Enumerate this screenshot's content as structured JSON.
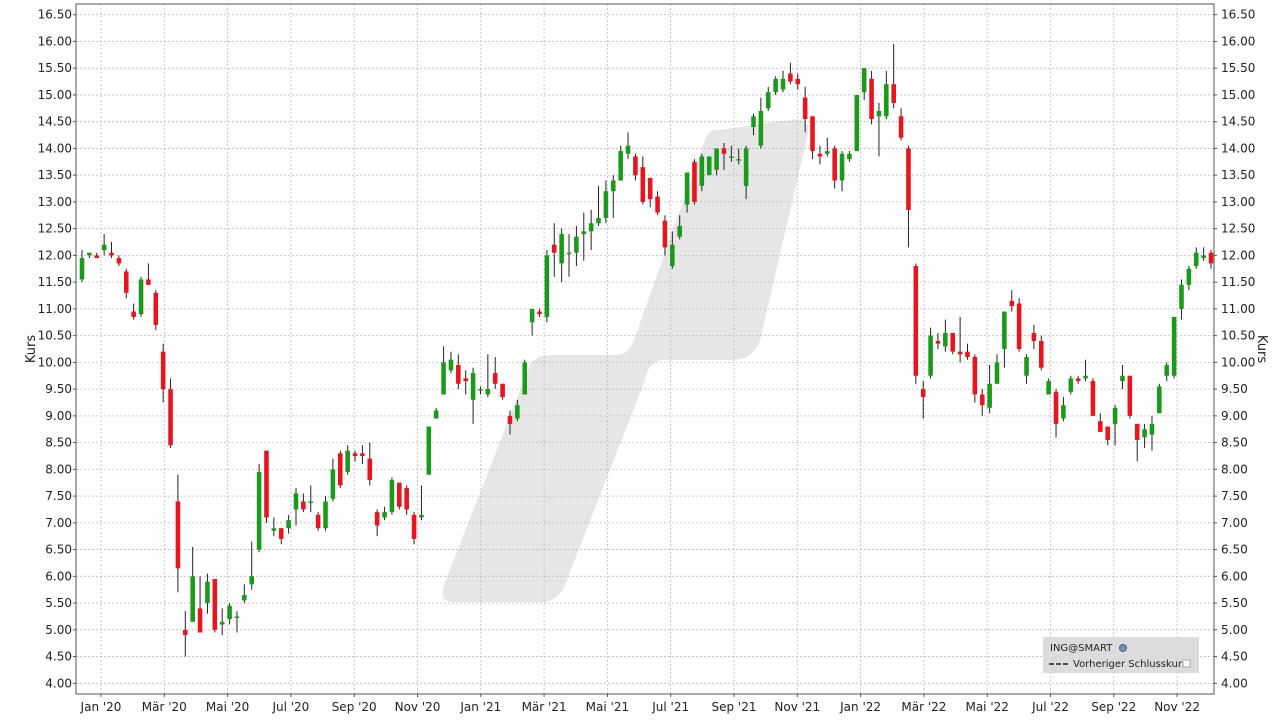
{
  "chart_data": {
    "type": "candlestick",
    "ylabel_left": "Kurs",
    "ylabel_right": "Kurs",
    "ylim": [
      3.8,
      16.7
    ],
    "y_ticks": [
      "4.00",
      "4.50",
      "5.00",
      "5.50",
      "6.00",
      "6.50",
      "7.00",
      "7.50",
      "8.00",
      "8.50",
      "9.00",
      "9.50",
      "10.00",
      "10.50",
      "11.00",
      "11.50",
      "12.00",
      "12.50",
      "13.00",
      "13.50",
      "14.00",
      "14.50",
      "15.00",
      "15.50",
      "16.00",
      "16.50"
    ],
    "x_ticks": [
      "Jan '20",
      "Mär '20",
      "Mai '20",
      "Jul '20",
      "Sep '20",
      "Nov '20",
      "Jan '21",
      "Mär '21",
      "Mai '21",
      "Jul '21",
      "Sep '21",
      "Nov '21",
      "Jan '22",
      "Mär '22",
      "Mai '22",
      "Jul '22",
      "Sep '22",
      "Nov '22"
    ],
    "grid": true,
    "colors": {
      "up": "#1a9a1a",
      "down": "#e8141e",
      "wick": "#222222",
      "grid": "#bbbbbb",
      "watermark": "#e6e6e6",
      "legend_bg": "#dcdcdc"
    },
    "legend": {
      "position": "bottom-right",
      "title": "ING@SMART",
      "entries": [
        "Vorheriger Schlusskurs"
      ]
    },
    "candles": [
      {
        "o": 11.55,
        "h": 12.1,
        "l": 11.5,
        "c": 11.95
      },
      {
        "o": 12.0,
        "h": 12.05,
        "l": 11.95,
        "c": 12.05
      },
      {
        "o": 12.0,
        "h": 12.05,
        "l": 11.95,
        "c": 11.95
      },
      {
        "o": 12.1,
        "h": 12.4,
        "l": 12.0,
        "c": 12.2
      },
      {
        "o": 12.05,
        "h": 12.25,
        "l": 11.95,
        "c": 12.0
      },
      {
        "o": 11.95,
        "h": 12.0,
        "l": 11.8,
        "c": 11.85
      },
      {
        "o": 11.7,
        "h": 11.75,
        "l": 11.2,
        "c": 11.3
      },
      {
        "o": 10.95,
        "h": 11.1,
        "l": 10.8,
        "c": 10.85
      },
      {
        "o": 10.9,
        "h": 11.6,
        "l": 10.85,
        "c": 11.55
      },
      {
        "o": 11.55,
        "h": 11.85,
        "l": 11.45,
        "c": 11.45
      },
      {
        "o": 11.3,
        "h": 11.35,
        "l": 10.6,
        "c": 10.7
      },
      {
        "o": 10.2,
        "h": 10.35,
        "l": 9.25,
        "c": 9.5
      },
      {
        "o": 9.5,
        "h": 9.7,
        "l": 8.4,
        "c": 8.45
      },
      {
        "o": 7.4,
        "h": 7.9,
        "l": 5.7,
        "c": 6.15
      },
      {
        "o": 5.0,
        "h": 5.35,
        "l": 4.5,
        "c": 4.9
      },
      {
        "o": 5.15,
        "h": 6.55,
        "l": 5.15,
        "c": 6.0
      },
      {
        "o": 5.4,
        "h": 6.0,
        "l": 4.95,
        "c": 4.95
      },
      {
        "o": 5.5,
        "h": 6.05,
        "l": 5.3,
        "c": 5.9
      },
      {
        "o": 5.95,
        "h": 5.95,
        "l": 4.95,
        "c": 5.0
      },
      {
        "o": 5.1,
        "h": 5.4,
        "l": 4.9,
        "c": 5.15
      },
      {
        "o": 5.2,
        "h": 5.5,
        "l": 5.1,
        "c": 5.45
      },
      {
        "o": 5.25,
        "h": 5.35,
        "l": 4.95,
        "c": 5.25
      },
      {
        "o": 5.55,
        "h": 5.85,
        "l": 5.5,
        "c": 5.65
      },
      {
        "o": 5.85,
        "h": 6.65,
        "l": 5.75,
        "c": 6.0
      },
      {
        "o": 6.5,
        "h": 8.1,
        "l": 6.45,
        "c": 7.95
      },
      {
        "o": 8.35,
        "h": 8.35,
        "l": 7.0,
        "c": 7.1
      },
      {
        "o": 6.85,
        "h": 7.1,
        "l": 6.75,
        "c": 6.9
      },
      {
        "o": 6.9,
        "h": 6.9,
        "l": 6.6,
        "c": 6.7
      },
      {
        "o": 6.9,
        "h": 7.15,
        "l": 6.8,
        "c": 7.05
      },
      {
        "o": 7.25,
        "h": 7.65,
        "l": 6.95,
        "c": 7.55
      },
      {
        "o": 7.4,
        "h": 7.55,
        "l": 7.2,
        "c": 7.25
      },
      {
        "o": 7.4,
        "h": 7.7,
        "l": 7.2,
        "c": 7.4
      },
      {
        "o": 7.15,
        "h": 7.2,
        "l": 6.85,
        "c": 6.9
      },
      {
        "o": 6.9,
        "h": 7.5,
        "l": 6.85,
        "c": 7.4
      },
      {
        "o": 7.45,
        "h": 8.2,
        "l": 7.4,
        "c": 8.0
      },
      {
        "o": 8.3,
        "h": 8.35,
        "l": 7.65,
        "c": 7.7
      },
      {
        "o": 7.95,
        "h": 8.45,
        "l": 7.9,
        "c": 8.35
      },
      {
        "o": 8.3,
        "h": 8.35,
        "l": 8.15,
        "c": 8.25
      },
      {
        "o": 8.3,
        "h": 8.45,
        "l": 8.1,
        "c": 8.25
      },
      {
        "o": 8.2,
        "h": 8.5,
        "l": 7.7,
        "c": 7.8
      },
      {
        "o": 7.2,
        "h": 7.25,
        "l": 6.75,
        "c": 6.95
      },
      {
        "o": 7.1,
        "h": 7.3,
        "l": 7.05,
        "c": 7.2
      },
      {
        "o": 7.2,
        "h": 7.85,
        "l": 7.15,
        "c": 7.8
      },
      {
        "o": 7.75,
        "h": 7.75,
        "l": 7.25,
        "c": 7.3
      },
      {
        "o": 7.65,
        "h": 7.7,
        "l": 7.15,
        "c": 7.25
      },
      {
        "o": 7.15,
        "h": 7.2,
        "l": 6.6,
        "c": 6.7
      },
      {
        "o": 7.1,
        "h": 7.7,
        "l": 7.05,
        "c": 7.15
      },
      {
        "o": 7.9,
        "h": 8.8,
        "l": 7.9,
        "c": 8.8
      },
      {
        "o": 8.95,
        "h": 9.15,
        "l": 8.95,
        "c": 9.1
      },
      {
        "o": 9.4,
        "h": 10.3,
        "l": 9.4,
        "c": 10.0
      },
      {
        "o": 9.85,
        "h": 10.2,
        "l": 9.8,
        "c": 10.05
      },
      {
        "o": 9.95,
        "h": 10.15,
        "l": 9.5,
        "c": 9.6
      },
      {
        "o": 9.7,
        "h": 9.85,
        "l": 9.4,
        "c": 9.65
      },
      {
        "o": 9.3,
        "h": 9.9,
        "l": 8.85,
        "c": 9.8
      },
      {
        "o": 9.5,
        "h": 9.55,
        "l": 9.4,
        "c": 9.5
      },
      {
        "o": 9.4,
        "h": 10.15,
        "l": 9.35,
        "c": 9.5
      },
      {
        "o": 9.8,
        "h": 10.1,
        "l": 9.5,
        "c": 9.6
      },
      {
        "o": 9.6,
        "h": 9.6,
        "l": 9.3,
        "c": 9.35
      },
      {
        "o": 9.0,
        "h": 9.1,
        "l": 8.65,
        "c": 8.85
      },
      {
        "o": 8.95,
        "h": 9.3,
        "l": 8.9,
        "c": 9.2
      },
      {
        "o": 9.4,
        "h": 10.05,
        "l": 9.4,
        "c": 10.0
      },
      {
        "o": 10.75,
        "h": 11.0,
        "l": 10.5,
        "c": 11.0
      },
      {
        "o": 10.95,
        "h": 11.0,
        "l": 10.85,
        "c": 10.9
      },
      {
        "o": 10.85,
        "h": 12.1,
        "l": 10.75,
        "c": 12.0
      },
      {
        "o": 12.2,
        "h": 12.6,
        "l": 11.6,
        "c": 12.05
      },
      {
        "o": 11.85,
        "h": 12.5,
        "l": 11.5,
        "c": 12.4
      },
      {
        "o": 12.05,
        "h": 12.4,
        "l": 11.6,
        "c": 12.05
      },
      {
        "o": 12.05,
        "h": 12.55,
        "l": 11.8,
        "c": 12.35
      },
      {
        "o": 12.4,
        "h": 12.8,
        "l": 11.9,
        "c": 12.45
      },
      {
        "o": 12.45,
        "h": 12.85,
        "l": 12.1,
        "c": 12.6
      },
      {
        "o": 12.6,
        "h": 13.3,
        "l": 12.55,
        "c": 12.7
      },
      {
        "o": 12.7,
        "h": 13.4,
        "l": 12.6,
        "c": 13.2
      },
      {
        "o": 13.2,
        "h": 13.5,
        "l": 12.7,
        "c": 13.4
      },
      {
        "o": 13.4,
        "h": 14.05,
        "l": 13.4,
        "c": 13.95
      },
      {
        "o": 13.9,
        "h": 14.3,
        "l": 13.8,
        "c": 14.05
      },
      {
        "o": 13.85,
        "h": 13.9,
        "l": 13.4,
        "c": 13.5
      },
      {
        "o": 13.65,
        "h": 13.85,
        "l": 12.95,
        "c": 13.0
      },
      {
        "o": 13.45,
        "h": 13.45,
        "l": 12.9,
        "c": 13.05
      },
      {
        "o": 13.1,
        "h": 13.2,
        "l": 12.75,
        "c": 12.8
      },
      {
        "o": 12.65,
        "h": 12.75,
        "l": 12.0,
        "c": 12.15
      },
      {
        "o": 11.8,
        "h": 12.45,
        "l": 11.75,
        "c": 12.2
      },
      {
        "o": 12.35,
        "h": 12.75,
        "l": 12.3,
        "c": 12.55
      },
      {
        "o": 12.95,
        "h": 13.55,
        "l": 12.8,
        "c": 13.55
      },
      {
        "o": 13.75,
        "h": 13.8,
        "l": 12.95,
        "c": 13.0
      },
      {
        "o": 13.3,
        "h": 13.9,
        "l": 13.2,
        "c": 13.85
      },
      {
        "o": 13.5,
        "h": 13.85,
        "l": 13.5,
        "c": 13.85
      },
      {
        "o": 13.6,
        "h": 14.0,
        "l": 13.5,
        "c": 14.0
      },
      {
        "o": 14.0,
        "h": 14.1,
        "l": 13.6,
        "c": 13.9
      },
      {
        "o": 13.85,
        "h": 14.05,
        "l": 13.75,
        "c": 13.85
      },
      {
        "o": 13.8,
        "h": 14.0,
        "l": 13.7,
        "c": 13.8
      },
      {
        "o": 13.3,
        "h": 14.05,
        "l": 13.05,
        "c": 14.0
      },
      {
        "o": 14.4,
        "h": 14.65,
        "l": 14.25,
        "c": 14.6
      },
      {
        "o": 14.05,
        "h": 14.95,
        "l": 14.0,
        "c": 14.7
      },
      {
        "o": 14.75,
        "h": 15.15,
        "l": 14.7,
        "c": 15.05
      },
      {
        "o": 15.05,
        "h": 15.35,
        "l": 15.0,
        "c": 15.3
      },
      {
        "o": 15.1,
        "h": 15.45,
        "l": 15.05,
        "c": 15.3
      },
      {
        "o": 15.4,
        "h": 15.6,
        "l": 15.2,
        "c": 15.25
      },
      {
        "o": 15.3,
        "h": 15.4,
        "l": 15.1,
        "c": 15.2
      },
      {
        "o": 14.95,
        "h": 15.15,
        "l": 14.3,
        "c": 14.55
      },
      {
        "o": 14.6,
        "h": 14.6,
        "l": 13.8,
        "c": 13.95
      },
      {
        "o": 13.9,
        "h": 14.05,
        "l": 13.7,
        "c": 13.85
      },
      {
        "o": 13.9,
        "h": 14.2,
        "l": 13.85,
        "c": 13.95
      },
      {
        "o": 14.0,
        "h": 14.05,
        "l": 13.25,
        "c": 13.4
      },
      {
        "o": 13.4,
        "h": 13.95,
        "l": 13.2,
        "c": 13.9
      },
      {
        "o": 13.8,
        "h": 13.95,
        "l": 13.75,
        "c": 13.9
      },
      {
        "o": 13.95,
        "h": 15.0,
        "l": 13.95,
        "c": 15.0
      },
      {
        "o": 15.05,
        "h": 15.5,
        "l": 14.9,
        "c": 15.5
      },
      {
        "o": 15.3,
        "h": 15.45,
        "l": 14.45,
        "c": 14.55
      },
      {
        "o": 14.6,
        "h": 14.85,
        "l": 13.85,
        "c": 14.7
      },
      {
        "o": 14.6,
        "h": 15.45,
        "l": 14.55,
        "c": 15.2
      },
      {
        "o": 15.2,
        "h": 15.95,
        "l": 14.75,
        "c": 14.85
      },
      {
        "o": 14.6,
        "h": 14.75,
        "l": 14.15,
        "c": 14.2
      },
      {
        "o": 14.0,
        "h": 14.05,
        "l": 12.15,
        "c": 12.85
      },
      {
        "o": 11.8,
        "h": 11.85,
        "l": 9.6,
        "c": 9.75
      },
      {
        "o": 9.5,
        "h": 9.65,
        "l": 8.95,
        "c": 9.35
      },
      {
        "o": 9.75,
        "h": 10.65,
        "l": 9.7,
        "c": 10.5
      },
      {
        "o": 10.4,
        "h": 10.55,
        "l": 10.25,
        "c": 10.35
      },
      {
        "o": 10.3,
        "h": 10.8,
        "l": 10.2,
        "c": 10.55
      },
      {
        "o": 10.55,
        "h": 10.55,
        "l": 10.15,
        "c": 10.2
      },
      {
        "o": 10.2,
        "h": 10.85,
        "l": 10.0,
        "c": 10.15
      },
      {
        "o": 10.2,
        "h": 10.35,
        "l": 10.05,
        "c": 10.1
      },
      {
        "o": 10.1,
        "h": 10.15,
        "l": 9.25,
        "c": 9.4
      },
      {
        "o": 9.4,
        "h": 9.5,
        "l": 9.0,
        "c": 9.2
      },
      {
        "o": 9.15,
        "h": 9.95,
        "l": 9.05,
        "c": 9.6
      },
      {
        "o": 9.6,
        "h": 10.15,
        "l": 9.6,
        "c": 10.0
      },
      {
        "o": 10.25,
        "h": 10.95,
        "l": 9.9,
        "c": 10.95
      },
      {
        "o": 11.15,
        "h": 11.35,
        "l": 10.95,
        "c": 11.05
      },
      {
        "o": 11.1,
        "h": 11.2,
        "l": 10.2,
        "c": 10.25
      },
      {
        "o": 9.75,
        "h": 10.15,
        "l": 9.6,
        "c": 10.1
      },
      {
        "o": 10.55,
        "h": 10.7,
        "l": 10.25,
        "c": 10.4
      },
      {
        "o": 10.4,
        "h": 10.5,
        "l": 9.85,
        "c": 9.9
      },
      {
        "o": 9.4,
        "h": 9.7,
        "l": 9.45,
        "c": 9.65
      },
      {
        "o": 9.45,
        "h": 9.5,
        "l": 8.6,
        "c": 8.85
      },
      {
        "o": 8.95,
        "h": 9.35,
        "l": 8.9,
        "c": 9.2
      },
      {
        "o": 9.45,
        "h": 9.75,
        "l": 9.4,
        "c": 9.7
      },
      {
        "o": 9.7,
        "h": 9.75,
        "l": 9.6,
        "c": 9.65
      },
      {
        "o": 9.7,
        "h": 10.05,
        "l": 9.65,
        "c": 9.75
      },
      {
        "o": 9.65,
        "h": 9.7,
        "l": 9.0,
        "c": 9.0
      },
      {
        "o": 8.9,
        "h": 9.05,
        "l": 8.75,
        "c": 8.7
      },
      {
        "o": 8.8,
        "h": 8.8,
        "l": 8.45,
        "c": 8.55
      },
      {
        "o": 8.85,
        "h": 9.2,
        "l": 8.45,
        "c": 9.15
      },
      {
        "o": 9.65,
        "h": 9.95,
        "l": 9.5,
        "c": 9.75
      },
      {
        "o": 9.75,
        "h": 9.75,
        "l": 8.95,
        "c": 9.0
      },
      {
        "o": 8.85,
        "h": 8.85,
        "l": 8.15,
        "c": 8.55
      },
      {
        "o": 8.6,
        "h": 8.85,
        "l": 8.4,
        "c": 8.75
      },
      {
        "o": 8.65,
        "h": 9.0,
        "l": 8.35,
        "c": 8.85
      },
      {
        "o": 9.05,
        "h": 9.6,
        "l": 9.05,
        "c": 9.55
      },
      {
        "o": 9.75,
        "h": 10.0,
        "l": 9.65,
        "c": 9.95
      },
      {
        "o": 9.75,
        "h": 10.85,
        "l": 9.7,
        "c": 10.85
      },
      {
        "o": 11.0,
        "h": 11.55,
        "l": 10.8,
        "c": 11.45
      },
      {
        "o": 11.45,
        "h": 11.8,
        "l": 11.35,
        "c": 11.75
      },
      {
        "o": 11.8,
        "h": 12.15,
        "l": 11.75,
        "c": 12.05
      },
      {
        "o": 11.95,
        "h": 12.15,
        "l": 11.9,
        "c": 12.0
      },
      {
        "o": 12.05,
        "h": 12.1,
        "l": 11.75,
        "c": 11.85
      }
    ]
  }
}
